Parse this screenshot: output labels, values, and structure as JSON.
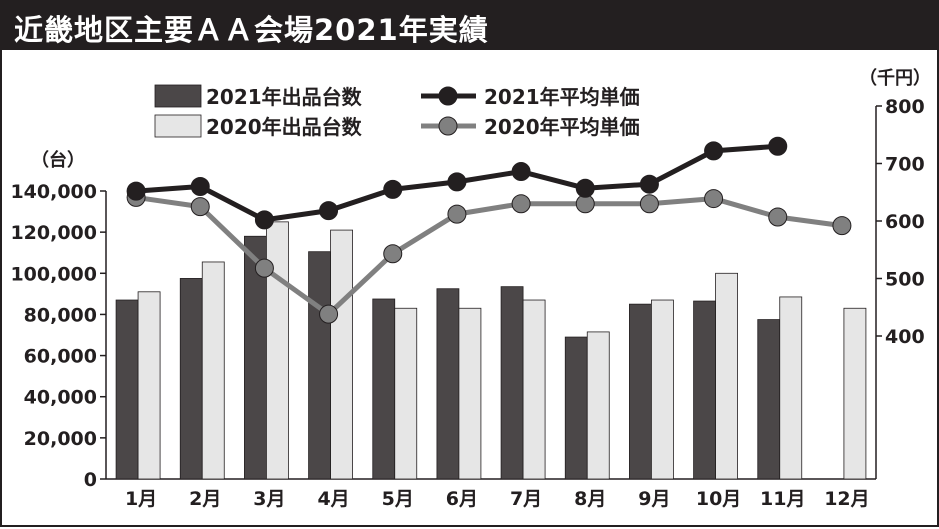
{
  "title": "近畿地区主要ＡＡ会場2021年実績",
  "chart_data": {
    "type": "bar",
    "categories": [
      "1月",
      "2月",
      "3月",
      "4月",
      "5月",
      "6月",
      "7月",
      "8月",
      "9月",
      "10月",
      "11月",
      "12月"
    ],
    "series": [
      {
        "name": "2021年出品台数",
        "type": "bar",
        "axis": "left",
        "values": [
          87000,
          97500,
          118000,
          110500,
          87500,
          92500,
          93500,
          69000,
          85000,
          86500,
          77500,
          null
        ]
      },
      {
        "name": "2020年出品台数",
        "type": "bar",
        "axis": "left",
        "values": [
          91000,
          105500,
          125000,
          121000,
          83000,
          83000,
          87000,
          71500,
          87000,
          100000,
          88500,
          83000
        ]
      },
      {
        "name": "2021年平均単価",
        "type": "line",
        "axis": "right",
        "values": [
          652,
          660,
          602,
          618,
          655,
          668,
          686,
          657,
          664,
          722,
          730,
          null
        ]
      },
      {
        "name": "2020年平均単価",
        "type": "line",
        "axis": "right",
        "values": [
          641,
          625,
          518,
          438,
          543,
          612,
          630,
          630,
          630,
          639,
          607,
          592
        ]
      }
    ],
    "y_left": {
      "unit": "（台）",
      "range": [
        0,
        140000
      ],
      "ticks": [
        "0",
        "20,000",
        "40,000",
        "60,000",
        "80,000",
        "100,000",
        "120,000",
        "140,000"
      ]
    },
    "y_right": {
      "unit": "（千円）",
      "range": [
        400,
        800
      ],
      "ticks": [
        "400",
        "500",
        "600",
        "700",
        "800"
      ]
    },
    "legend_position": "top",
    "grid": false,
    "colors": {
      "bar_2021": "#4b4748",
      "bar_2020": "#e6e6e6",
      "line_2021": "#231f20",
      "line_2020": "#808080"
    }
  }
}
